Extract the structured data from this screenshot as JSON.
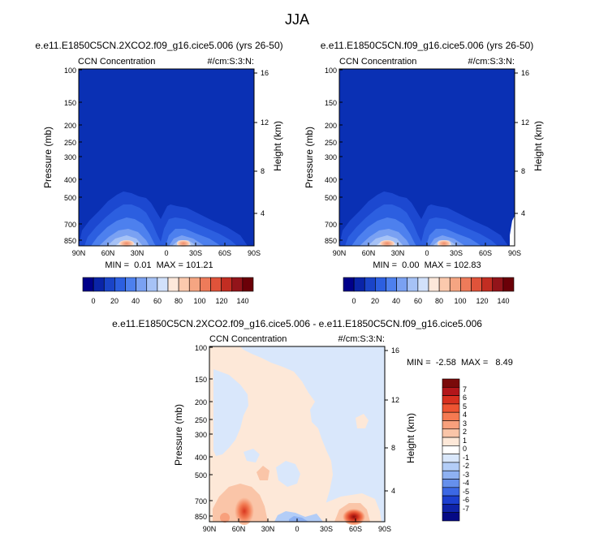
{
  "figure": {
    "title": "JJA"
  },
  "chart_data": [
    {
      "type": "heatmap",
      "title": "e.e11.E1850C5CN.2XCO2.f09_g16.cice5.006 (yrs 26-50)",
      "left_label": "CCN Concentration",
      "right_label": "#/cm:S:3:N:",
      "xlabel": "",
      "ylabel": "Pressure (mb)",
      "ylabel_right": "Height (km)",
      "xticks": [
        "90N",
        "60N",
        "30N",
        "0",
        "30S",
        "60S",
        "90S"
      ],
      "yticks": [
        100,
        150,
        200,
        250,
        300,
        400,
        500,
        700,
        850
      ],
      "yticks_right": [
        16,
        12,
        8,
        4
      ],
      "ylim": [
        100,
        1000
      ],
      "stats": "MIN =  0.01  MAX = 101.21",
      "min": 0.01,
      "max": 101.21,
      "colorbar_ticks": [
        "0",
        "20",
        "40",
        "60",
        "80",
        "100",
        "120",
        "140"
      ],
      "colorbar_colors": [
        "#00008a",
        "#0a24a8",
        "#1a44c8",
        "#2c5fe0",
        "#4d80ee",
        "#7aa1f2",
        "#a6c2f6",
        "#d2e1fb",
        "#fde8da",
        "#fbc9ad",
        "#f5a582",
        "#ee7b5a",
        "#e0533a",
        "#c22d22",
        "#93141a",
        "#6b0008"
      ]
    },
    {
      "type": "heatmap",
      "title": "e.e11.E1850C5CN.f09_g16.cice5.006 (yrs 26-50)",
      "left_label": "CCN Concentration",
      "right_label": "#/cm:S:3:N:",
      "xlabel": "",
      "ylabel": "Pressure (mb)",
      "ylabel_right": "Height (km)",
      "xticks": [
        "90N",
        "60N",
        "30N",
        "0",
        "30S",
        "60S",
        "90S"
      ],
      "yticks": [
        100,
        150,
        200,
        250,
        300,
        400,
        500,
        700,
        850
      ],
      "yticks_right": [
        16,
        12,
        8,
        4
      ],
      "ylim": [
        100,
        1000
      ],
      "stats": "MIN =  0.00  MAX = 102.83",
      "min": 0.0,
      "max": 102.83,
      "colorbar_ticks": [
        "0",
        "20",
        "40",
        "60",
        "80",
        "100",
        "120",
        "140"
      ],
      "colorbar_colors": [
        "#00008a",
        "#0a24a8",
        "#1a44c8",
        "#2c5fe0",
        "#4d80ee",
        "#7aa1f2",
        "#a6c2f6",
        "#d2e1fb",
        "#fde8da",
        "#fbc9ad",
        "#f5a582",
        "#ee7b5a",
        "#e0533a",
        "#c22d22",
        "#93141a",
        "#6b0008"
      ]
    },
    {
      "type": "heatmap",
      "title": "e.e11.E1850C5CN.2XCO2.f09_g16.cice5.006 - e.e11.E1850C5CN.f09_g16.cice5.006",
      "left_label": "CCN Concentration",
      "right_label": "#/cm:S:3:N:",
      "xlabel": "",
      "ylabel": "Pressure (mb)",
      "ylabel_right": "Height (km)",
      "xticks": [
        "90N",
        "60N",
        "30N",
        "0",
        "30S",
        "60S",
        "90S"
      ],
      "yticks": [
        100,
        150,
        200,
        250,
        300,
        400,
        500,
        700,
        850
      ],
      "yticks_right": [
        16,
        12,
        8,
        4
      ],
      "ylim": [
        100,
        1000
      ],
      "stats": "MIN =  -2.58  MAX =   8.49",
      "min": -2.58,
      "max": 8.49,
      "colorbar_ticks": [
        "7",
        "6",
        "5",
        "4",
        "3",
        "2",
        "1",
        "0",
        "-1",
        "-2",
        "-3",
        "-4",
        "-5",
        "-6",
        "-7"
      ],
      "colorbar_colors": [
        "#7a0a0a",
        "#b3161a",
        "#d8301f",
        "#ee5432",
        "#f57a52",
        "#f8a07c",
        "#fac5a8",
        "#fde8d8",
        "#ffffff",
        "#d9e7fb",
        "#b3cdf7",
        "#8eb1f2",
        "#6690ec",
        "#3c68e4",
        "#1c3fcf",
        "#0f23a8",
        "#050a85"
      ]
    }
  ]
}
